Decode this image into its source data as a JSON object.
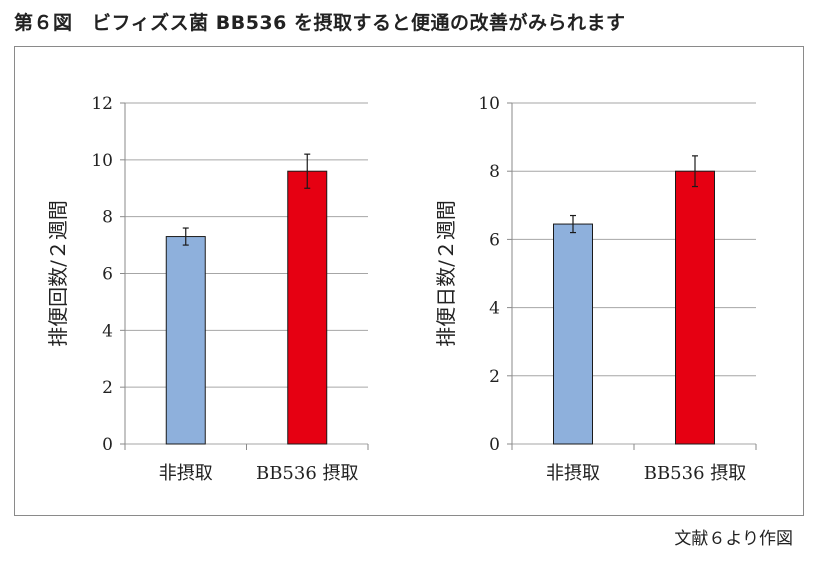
{
  "figure": {
    "title": "第６図　ビフィズス菌 BB536 を摂取すると便通の改善がみられます",
    "source": "文献６より作図"
  },
  "colors": {
    "no_intake": "#8eb0dc",
    "bb536": "#e60012",
    "grid": "#a6a6a6",
    "axis": "#8a8a8a"
  },
  "chart_data": [
    {
      "type": "bar",
      "categories": [
        "非摂取",
        "BB536 摂取"
      ],
      "values": [
        7.3,
        9.6
      ],
      "error": [
        0.3,
        0.6
      ],
      "ylabel": "排便回数/２週間",
      "ylim": [
        0,
        12
      ],
      "yticks": [
        0,
        2,
        4,
        6,
        8,
        10,
        12
      ],
      "grid": true
    },
    {
      "type": "bar",
      "categories": [
        "非摂取",
        "BB536 摂取"
      ],
      "values": [
        6.45,
        8.0
      ],
      "error": [
        0.25,
        0.45
      ],
      "ylabel": "排便日数/２週間",
      "ylim": [
        0,
        10
      ],
      "yticks": [
        0,
        2,
        4,
        6,
        8,
        10
      ],
      "grid": true
    }
  ]
}
